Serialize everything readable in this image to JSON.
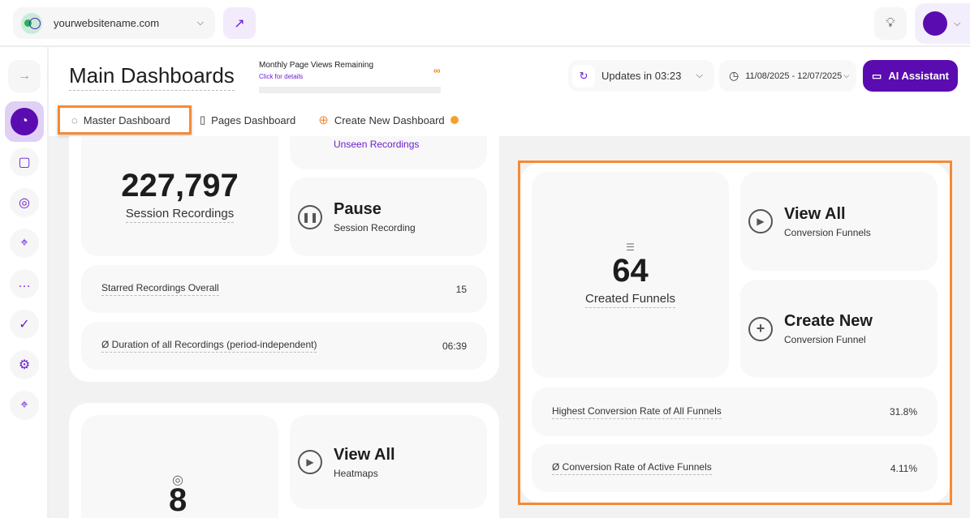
{
  "topbar": {
    "site": "yourwebsitename.com"
  },
  "header": {
    "title": "Main Dashboards",
    "monthly_label": "Monthly Page Views Remaining",
    "monthly_link": "Click for details",
    "monthly_value": "∞",
    "updates": "Updates in 03:23",
    "date_range": "11/08/2025 - 12/07/2025",
    "ai": "AI Assistant"
  },
  "tabs": [
    {
      "label": "Master Dashboard"
    },
    {
      "label": "Pages Dashboard"
    },
    {
      "label": "Create New Dashboard"
    }
  ],
  "recordings": {
    "count": "227,797",
    "label": "Session Recordings",
    "unseen": "Unseen Recordings",
    "pause_title": "Pause",
    "pause_sub": "Session Recording",
    "rows": [
      {
        "label": "Starred Recordings Overall",
        "value": "15"
      },
      {
        "label": "Ø Duration of all Recordings (period-independent)",
        "value": "06:39"
      }
    ]
  },
  "heatmaps": {
    "count": "8",
    "view_title": "View All",
    "view_sub": "Heatmaps"
  },
  "funnels": {
    "count": "64",
    "label": "Created Funnels",
    "view_title": "View All",
    "view_sub": "Conversion Funnels",
    "create_title": "Create New",
    "create_sub": "Conversion Funnel",
    "rows": [
      {
        "label": "Highest Conversion Rate of All Funnels",
        "value": "31.8%"
      },
      {
        "label": "Ø Conversion Rate of Active Funnels",
        "value": "4.11%"
      }
    ]
  },
  "colors": {
    "brand": "#5b0cb0",
    "highlight": "#f58a36"
  }
}
